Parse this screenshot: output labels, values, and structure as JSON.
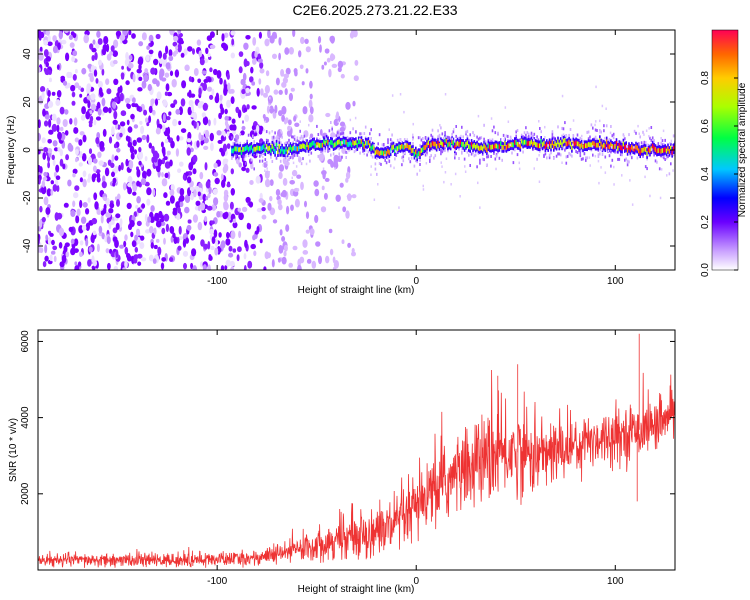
{
  "title": "C2E6.2025.273.21.22.E33",
  "chart_data": [
    {
      "type": "heatmap",
      "xlabel": "Height of straight line (km)",
      "ylabel": "Frequency (Hz)",
      "xlim": [
        -190,
        130
      ],
      "ylim": [
        -50,
        50
      ],
      "xticks": [
        -100,
        0,
        100
      ],
      "xtick_labels": [
        "-100",
        "0",
        "100"
      ],
      "yticks": [
        -40,
        -20,
        0,
        20,
        40
      ],
      "ytick_labels": [
        "-40",
        "-20",
        "0",
        "20",
        "40"
      ],
      "colorbar": {
        "label": "Normalized spectral amplitude",
        "range": [
          0,
          1
        ],
        "ticks": [
          0,
          0.2,
          0.4,
          0.6,
          0.8
        ],
        "tick_labels": [
          "0.0",
          "0.2",
          "0.4",
          "0.6",
          "0.8"
        ],
        "colormap": [
          "#ffffff",
          "#8b00ff",
          "#0000ff",
          "#00c8ff",
          "#00ff66",
          "#ffff00",
          "#ff8000",
          "#ff0033"
        ]
      },
      "noise_region_x": [
        -190,
        -60
      ],
      "ridge": {
        "x": [
          -93,
          -85,
          -75,
          -65,
          -55,
          -45,
          -35,
          -25,
          -18,
          -10,
          -3,
          0,
          5,
          15,
          25,
          35,
          45,
          55,
          65,
          75,
          85,
          95,
          105,
          115,
          125,
          130
        ],
        "freq": [
          0,
          0,
          1,
          0,
          2,
          3,
          3,
          2,
          -2,
          1,
          1,
          -2,
          2,
          3,
          2,
          1,
          2,
          3,
          2,
          3,
          2,
          2,
          1,
          0,
          0,
          0
        ]
      }
    },
    {
      "type": "line",
      "xlabel": "Height of straight line (km)",
      "ylabel": "SNR (10 * v/v)",
      "xlim": [
        -190,
        130
      ],
      "ylim": [
        0,
        6300
      ],
      "xticks": [
        -100,
        0,
        100
      ],
      "xtick_labels": [
        "-100",
        "0",
        "100"
      ],
      "yticks": [
        2000,
        4000,
        6000
      ],
      "ytick_labels": [
        "2000",
        "4000",
        "6000"
      ],
      "line_color": "#ee3333",
      "trend": {
        "x": [
          -190,
          -150,
          -110,
          -85,
          -70,
          -55,
          -40,
          -25,
          -10,
          0,
          10,
          20,
          30,
          40,
          50,
          60,
          70,
          80,
          90,
          100,
          110,
          120,
          130
        ],
        "y": [
          250,
          250,
          260,
          300,
          400,
          600,
          800,
          950,
          1150,
          1600,
          2100,
          2500,
          2800,
          3000,
          3100,
          3000,
          3100,
          3300,
          3450,
          3550,
          3650,
          3800,
          4000
        ]
      },
      "spread": {
        "x": [
          -190,
          -80,
          -40,
          0,
          40,
          80,
          130
        ],
        "y": [
          150,
          180,
          450,
          800,
          1100,
          700,
          550
        ]
      },
      "spikes": [
        {
          "x": 112,
          "y": 6200
        },
        {
          "x": 111,
          "y": 1800
        },
        {
          "x": 51,
          "y": 5400
        },
        {
          "x": 41,
          "y": 5100
        }
      ]
    }
  ]
}
